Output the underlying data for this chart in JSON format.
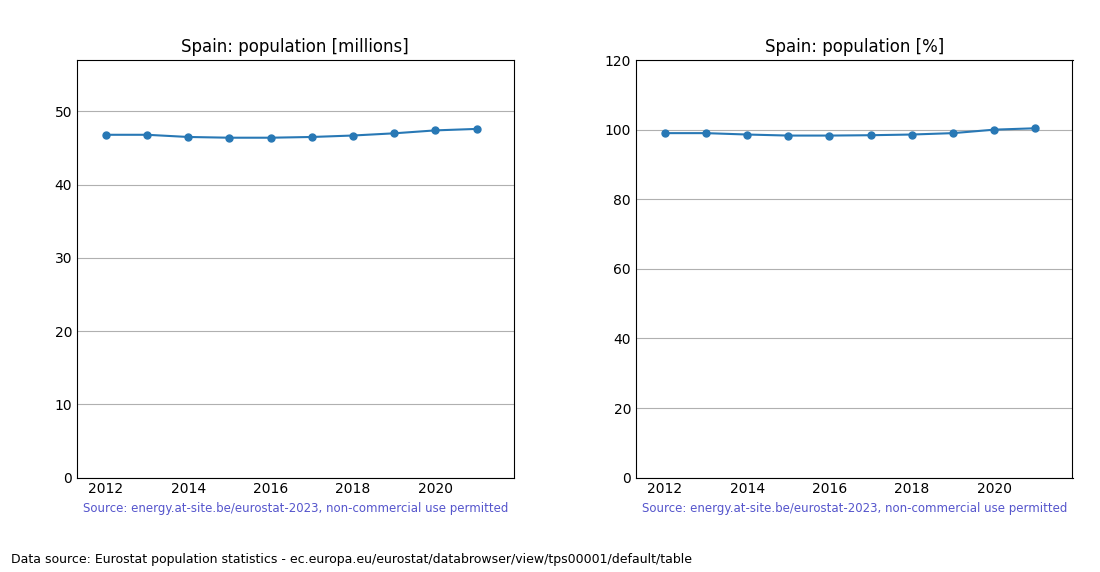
{
  "years": [
    2012,
    2013,
    2014,
    2015,
    2016,
    2017,
    2018,
    2019,
    2020,
    2021
  ],
  "population_millions": [
    46.8,
    46.8,
    46.5,
    46.4,
    46.4,
    46.5,
    46.7,
    47.0,
    47.4,
    47.6
  ],
  "population_percent": [
    99.0,
    99.0,
    98.6,
    98.3,
    98.3,
    98.4,
    98.6,
    99.0,
    100.0,
    100.4
  ],
  "title_millions": "Spain: population [millions]",
  "title_percent": "Spain: population [%]",
  "source_text": "Source: energy.at-site.be/eurostat-2023, non-commercial use permitted",
  "footer_text": "Data source: Eurostat population statistics - ec.europa.eu/eurostat/databrowser/view/tps00001/default/table",
  "line_color": "#2878b5",
  "source_color": "#5555cc",
  "ylim_millions": [
    0,
    57
  ],
  "ylim_percent": [
    0,
    120
  ],
  "yticks_millions": [
    0,
    10,
    20,
    30,
    40,
    50
  ],
  "yticks_percent": [
    0,
    20,
    40,
    60,
    80,
    100,
    120
  ],
  "xticks": [
    2012,
    2014,
    2016,
    2018,
    2020
  ],
  "xlim": [
    2011.3,
    2021.9
  ],
  "figsize": [
    11.0,
    5.72
  ],
  "dpi": 100
}
